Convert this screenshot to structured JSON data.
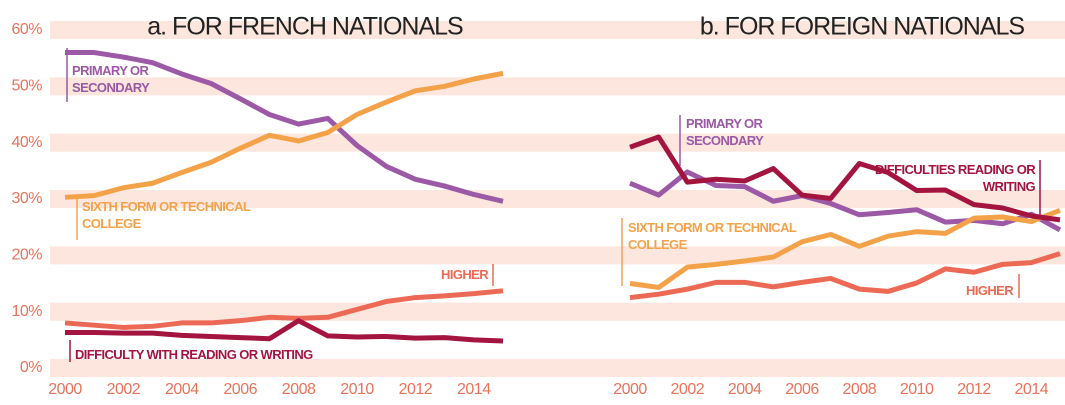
{
  "chart_data": [
    {
      "type": "line",
      "title": "a. FOR FRENCH NATIONALS",
      "x": [
        2000,
        2001,
        2002,
        2003,
        2004,
        2005,
        2006,
        2007,
        2008,
        2009,
        2010,
        2011,
        2012,
        2013,
        2014,
        2015
      ],
      "xlim": [
        2000,
        2015
      ],
      "xticks": [
        2000,
        2002,
        2004,
        2006,
        2008,
        2010,
        2012,
        2014
      ],
      "ylim": [
        0,
        60
      ],
      "yticks": [
        {
          "value": 0,
          "label": "0%"
        },
        {
          "value": 10,
          "label": "10%"
        },
        {
          "value": 20,
          "label": "20%"
        },
        {
          "value": 30,
          "label": "30%"
        },
        {
          "value": 40,
          "label": "40%"
        },
        {
          "value": 50,
          "label": "50%"
        },
        {
          "value": 60,
          "label": "60%"
        }
      ],
      "series": [
        {
          "name": "PRIMARY OR SECONDARY",
          "color": "#9b59a6",
          "values": [
            56,
            56,
            55.2,
            54.2,
            52.2,
            50.5,
            47.8,
            45,
            43.3,
            44.3,
            39.5,
            35.8,
            33.5,
            32.3,
            30.8,
            29.6
          ]
        },
        {
          "name": "SIXTH FORM OR TECHNICAL COLLEGE",
          "color": "#f4a24a",
          "values": [
            30.3,
            30.6,
            32,
            32.8,
            34.7,
            36.5,
            39,
            41.3,
            40.3,
            41.8,
            45,
            47.2,
            49.2,
            50,
            51.3,
            52.3
          ]
        },
        {
          "name": "HIGHER",
          "color": "#ec6a55",
          "values": [
            8,
            7.6,
            7.2,
            7.4,
            8,
            8,
            8.4,
            9,
            8.8,
            9,
            10.4,
            11.8,
            12.5,
            12.8,
            13.2,
            13.7
          ]
        },
        {
          "name": "DIFFICULTY WITH READING OR WRITING",
          "color": "#a3143f",
          "values": [
            6.3,
            6.3,
            6.2,
            6.2,
            5.8,
            5.6,
            5.4,
            5.2,
            8.4,
            5.7,
            5.5,
            5.6,
            5.3,
            5.4,
            5,
            4.8
          ]
        }
      ]
    },
    {
      "type": "line",
      "title": "b. FOR FOREIGN NATIONALS",
      "x": [
        2000,
        2001,
        2002,
        2003,
        2004,
        2005,
        2006,
        2007,
        2008,
        2009,
        2010,
        2011,
        2012,
        2013,
        2014,
        2015
      ],
      "xlim": [
        2000,
        2015
      ],
      "xticks": [
        2000,
        2002,
        2004,
        2006,
        2008,
        2010,
        2012,
        2014
      ],
      "ylim": [
        0,
        60
      ],
      "series": [
        {
          "name": "PRIMARY OR SECONDARY",
          "color": "#9b59a6",
          "values": [
            32.8,
            30.7,
            34.8,
            32.4,
            32.2,
            29.6,
            30.6,
            29.2,
            27.2,
            27.6,
            28.1,
            25.9,
            26.2,
            25.6,
            27.3,
            24.5
          ]
        },
        {
          "name": "SIXTH FORM OR TECHNICAL COLLEGE",
          "color": "#f4a24a",
          "values": [
            15,
            14.3,
            17.9,
            18.4,
            19,
            19.7,
            22.4,
            23.7,
            21.6,
            23.4,
            24.2,
            23.9,
            26.6,
            26.8,
            26,
            28
          ]
        },
        {
          "name": "HIGHER",
          "color": "#ec6a55",
          "values": [
            12.5,
            13.1,
            14,
            15.2,
            15.2,
            14.4,
            15.2,
            15.9,
            14,
            13.6,
            15.1,
            17.6,
            17,
            18.4,
            18.7,
            20.3
          ]
        },
        {
          "name": "DIFFICULTIES READING OR WRITING",
          "color": "#a3143f",
          "values": [
            39.2,
            41,
            33,
            33.5,
            33.2,
            35.4,
            30.7,
            30.1,
            36.3,
            34.7,
            31.5,
            31.6,
            29,
            28.4,
            27,
            26.3
          ]
        }
      ]
    }
  ]
}
